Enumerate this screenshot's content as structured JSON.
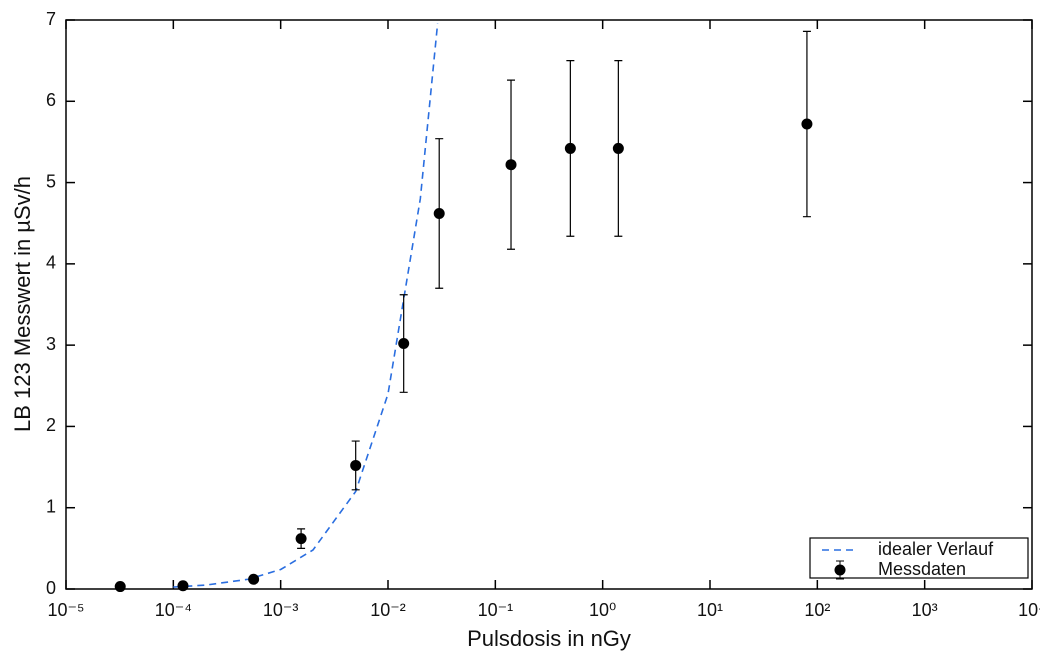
{
  "chart_data": {
    "type": "scatter",
    "log_x": true,
    "grid": false,
    "xlabel": "Pulsdosis in nGy",
    "ylabel": "LB 123 Messwert in µSv/h",
    "xlim": [
      1e-05,
      10000
    ],
    "ylim": [
      0,
      7
    ],
    "xticks": [
      {
        "value": 1e-05,
        "label": "10⁻⁵"
      },
      {
        "value": 0.0001,
        "label": "10⁻⁴"
      },
      {
        "value": 0.001,
        "label": "10⁻³"
      },
      {
        "value": 0.01,
        "label": "10⁻²"
      },
      {
        "value": 0.1,
        "label": "10⁻¹"
      },
      {
        "value": 1,
        "label": "10⁰"
      },
      {
        "value": 10,
        "label": "10¹"
      },
      {
        "value": 100,
        "label": "10²"
      },
      {
        "value": 1000,
        "label": "10³"
      },
      {
        "value": 10000,
        "label": "10⁴"
      }
    ],
    "yticks": [
      0,
      1,
      2,
      3,
      4,
      5,
      6,
      7
    ],
    "legend": "lower right",
    "series": [
      {
        "name": "idealer Verlauf",
        "type": "line",
        "color": "#2a6ee0",
        "dashed": true,
        "x": [
          0.0001,
          0.0002,
          0.0005,
          0.001,
          0.002,
          0.005,
          0.01,
          0.02,
          0.029
        ],
        "values": [
          0.024,
          0.048,
          0.12,
          0.24,
          0.48,
          1.2,
          2.4,
          4.8,
          6.96
        ]
      },
      {
        "name": "Messdaten",
        "type": "errorbar",
        "color": "#000000",
        "x": [
          3.2e-05,
          0.000123,
          0.00056,
          0.00155,
          0.005,
          0.014,
          0.03,
          0.14,
          0.5,
          1.4,
          80
        ],
        "values": [
          0.03,
          0.04,
          0.12,
          0.62,
          1.52,
          3.02,
          4.62,
          5.22,
          5.42,
          5.42,
          5.72
        ],
        "errors": [
          0.01,
          0.01,
          0.02,
          0.12,
          0.3,
          0.6,
          0.92,
          1.04,
          1.08,
          1.08,
          1.14
        ]
      }
    ]
  }
}
